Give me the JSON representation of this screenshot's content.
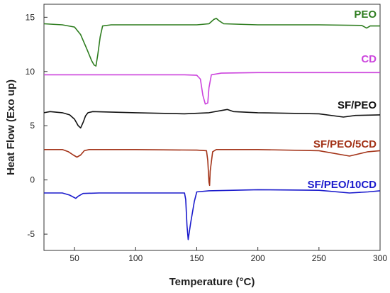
{
  "chart_data": {
    "type": "line",
    "xlabel": "Temperature (°C)",
    "ylabel": "Heat Flow (Exo up)",
    "xlim": [
      25,
      300
    ],
    "ylim": [
      -6.5,
      16.2
    ],
    "x_ticks": [
      50,
      100,
      150,
      200,
      250,
      300
    ],
    "y_ticks": [
      -5,
      0,
      5,
      10,
      15
    ],
    "grid": false,
    "series": [
      {
        "name": "PEO",
        "color": "#2e7d1f",
        "points": [
          [
            25,
            14.4
          ],
          [
            40,
            14.3
          ],
          [
            50,
            14.1
          ],
          [
            55,
            13.4
          ],
          [
            60,
            12.1
          ],
          [
            64,
            11.0
          ],
          [
            66,
            10.6
          ],
          [
            67.5,
            10.5
          ],
          [
            69,
            11.5
          ],
          [
            71,
            13.2
          ],
          [
            73,
            14.2
          ],
          [
            80,
            14.3
          ],
          [
            120,
            14.3
          ],
          [
            150,
            14.3
          ],
          [
            160,
            14.4
          ],
          [
            164,
            14.8
          ],
          [
            166,
            14.9
          ],
          [
            168,
            14.7
          ],
          [
            172,
            14.4
          ],
          [
            200,
            14.3
          ],
          [
            250,
            14.3
          ],
          [
            285,
            14.25
          ],
          [
            289,
            14.0
          ],
          [
            292,
            14.2
          ],
          [
            300,
            14.2
          ]
        ]
      },
      {
        "name": "CD",
        "color": "#cc44dd",
        "points": [
          [
            25,
            9.7
          ],
          [
            50,
            9.7
          ],
          [
            100,
            9.7
          ],
          [
            140,
            9.7
          ],
          [
            150,
            9.65
          ],
          [
            153,
            9.3
          ],
          [
            155,
            7.8
          ],
          [
            157,
            7.0
          ],
          [
            159,
            7.1
          ],
          [
            160,
            8.5
          ],
          [
            162,
            9.7
          ],
          [
            170,
            9.85
          ],
          [
            200,
            9.9
          ],
          [
            250,
            9.9
          ],
          [
            300,
            9.9
          ]
        ]
      },
      {
        "name": "SF/PEO",
        "color": "#111111",
        "points": [
          [
            25,
            6.2
          ],
          [
            30,
            6.3
          ],
          [
            40,
            6.2
          ],
          [
            46,
            6.0
          ],
          [
            50,
            5.6
          ],
          [
            53,
            5.0
          ],
          [
            55,
            4.8
          ],
          [
            57,
            5.3
          ],
          [
            59,
            5.9
          ],
          [
            61,
            6.2
          ],
          [
            65,
            6.3
          ],
          [
            100,
            6.2
          ],
          [
            140,
            6.1
          ],
          [
            160,
            6.2
          ],
          [
            170,
            6.4
          ],
          [
            175,
            6.5
          ],
          [
            180,
            6.3
          ],
          [
            200,
            6.2
          ],
          [
            250,
            6.1
          ],
          [
            270,
            5.8
          ],
          [
            280,
            5.95
          ],
          [
            300,
            6.0
          ]
        ]
      },
      {
        "name": "SF/PEO/5CD",
        "color": "#a33318",
        "points": [
          [
            25,
            2.8
          ],
          [
            40,
            2.8
          ],
          [
            45,
            2.6
          ],
          [
            49,
            2.3
          ],
          [
            52,
            2.1
          ],
          [
            55,
            2.3
          ],
          [
            58,
            2.7
          ],
          [
            62,
            2.8
          ],
          [
            100,
            2.8
          ],
          [
            150,
            2.75
          ],
          [
            158,
            2.7
          ],
          [
            159,
            1.8
          ],
          [
            160,
            -0.2
          ],
          [
            160.5,
            -0.5
          ],
          [
            161,
            0.8
          ],
          [
            163,
            2.6
          ],
          [
            166,
            2.8
          ],
          [
            200,
            2.8
          ],
          [
            250,
            2.7
          ],
          [
            275,
            2.2
          ],
          [
            290,
            2.6
          ],
          [
            300,
            2.7
          ]
        ]
      },
      {
        "name": "SF/PEO/10CD",
        "color": "#1a1acc",
        "points": [
          [
            25,
            -1.2
          ],
          [
            40,
            -1.2
          ],
          [
            46,
            -1.4
          ],
          [
            51,
            -1.7
          ],
          [
            53,
            -1.5
          ],
          [
            57,
            -1.25
          ],
          [
            70,
            -1.2
          ],
          [
            100,
            -1.2
          ],
          [
            140,
            -1.2
          ],
          [
            141,
            -1.8
          ],
          [
            142,
            -4.2
          ],
          [
            143,
            -5.5
          ],
          [
            145,
            -4.0
          ],
          [
            148,
            -2.0
          ],
          [
            150,
            -1.1
          ],
          [
            160,
            -1.0
          ],
          [
            200,
            -0.9
          ],
          [
            250,
            -0.95
          ],
          [
            275,
            -1.2
          ],
          [
            290,
            -1.1
          ],
          [
            300,
            -1.0
          ]
        ]
      }
    ]
  }
}
